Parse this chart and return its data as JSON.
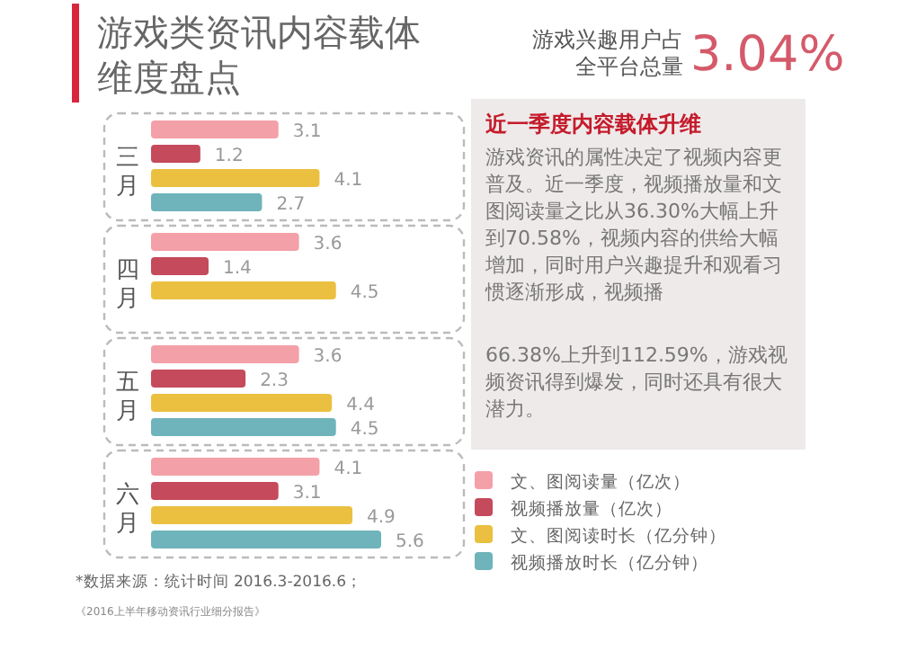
{
  "chart_data": {
    "type": "bar",
    "orientation": "horizontal",
    "title": "游戏类资讯内容载体维度盘点",
    "categories": [
      "三月",
      "四月",
      "五月",
      "六月"
    ],
    "series": [
      {
        "name": "文、图阅读量（亿次）",
        "color": "#f4a0a8",
        "values": [
          3.1,
          3.6,
          3.6,
          4.1
        ]
      },
      {
        "name": "视频播放量（亿次）",
        "color": "#c44a5c",
        "values": [
          1.2,
          1.4,
          2.3,
          3.1
        ]
      },
      {
        "name": "文、图阅读时长（亿分钟）",
        "color": "#ebc040",
        "values": [
          4.1,
          4.5,
          4.4,
          4.9
        ]
      },
      {
        "name": "视频播放时长（亿分钟）",
        "color": "#6fb4ba",
        "values": [
          2.7,
          null,
          4.5,
          5.6
        ]
      }
    ],
    "data_labels": true,
    "legend": "bottom right",
    "annotations": [
      "游戏兴趣用户占",
      "全平台总量",
      "3.04%",
      "近一季度内容载体升维",
      "游戏资讯的属性决定了视频内容更普及。近一季度，视频播放量和文图阅读量之比从36.30%大幅上升到70.58%，视频内容的供给大幅增加，同时用户兴趣提升和观看习惯逐渐形成，视频播",
      "66.38%上升到112.59%，游戏视频资讯得到爆发，同时还具有很大潜力。",
      "*数据来源：统计时间 2016.3-2016.6；",
      "《2016上半年移动资讯行业细分报告》"
    ]
  }
}
